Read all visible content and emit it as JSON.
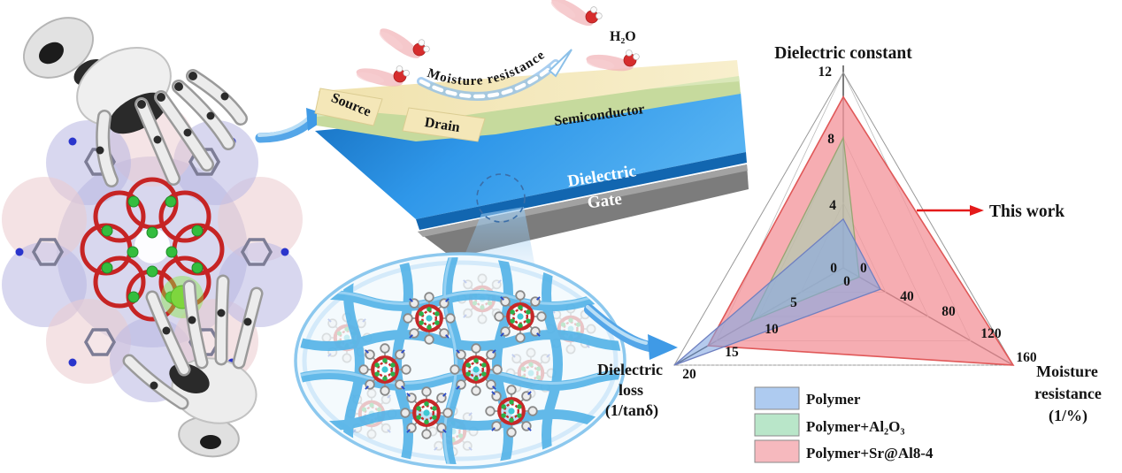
{
  "device": {
    "labels": {
      "source": "Source",
      "drain": "Drain",
      "semiconductor": "Semiconductor",
      "dielectric": "Dielectric",
      "gate": "Gate"
    },
    "arrow_text": "Moisture resistance",
    "h2o_label": "H₂O",
    "colors": {
      "electrode": "#f3e7ba",
      "semiconductor": "#c6da9d",
      "dielectric": "#2d96e8",
      "gate": "#838383"
    }
  },
  "radar": {
    "annotation": "This work",
    "labels": {
      "left_lines": [
        "Dielectric",
        "loss",
        "(1/tanδ)"
      ],
      "right_lines": [
        "Moisture",
        "resistance",
        "(1/%)"
      ]
    },
    "legend_colors": [
      "#aecbf0",
      "#b9e6c9",
      "#f6b9be"
    ]
  },
  "chart_data": {
    "type": "radar",
    "axes": [
      "Dielectric constant",
      "Moisture resistance (1/%)",
      "Dielectric loss (1/tanδ)"
    ],
    "axis_ranges": [
      [
        0,
        12
      ],
      [
        0,
        160
      ],
      [
        0,
        20
      ]
    ],
    "axis_ticks": [
      [
        0,
        4,
        8,
        12
      ],
      [
        0,
        40,
        80,
        120,
        160
      ],
      [
        0,
        5,
        10,
        15,
        20
      ]
    ],
    "series": [
      {
        "name": "Polymer",
        "values": [
          3,
          35,
          20
        ],
        "fill": "rgba(132,168,226,0.60)",
        "stroke": "#7080c0"
      },
      {
        "name": "Polymer+Al₂O₃",
        "values": [
          8,
          15,
          11
        ],
        "fill": "rgba(158,212,176,0.55)",
        "stroke": "#97a471"
      },
      {
        "name": "Polymer+Sr@Al8-4",
        "values": [
          10.5,
          160,
          16
        ],
        "fill": "rgba(244,150,156,0.78)",
        "stroke": "#e05858"
      }
    ],
    "annotation": "This work",
    "legend_position": "bottom-left",
    "grid": true
  }
}
